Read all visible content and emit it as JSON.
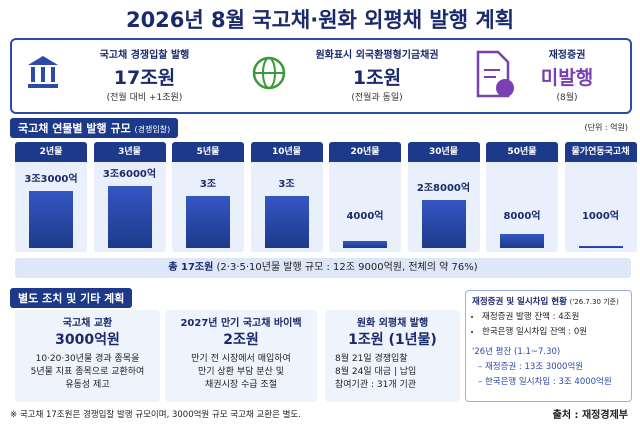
{
  "header": {
    "title": "2026년 8월 국고채·원화 외평채 발행 계획"
  },
  "summary": [
    {
      "label": "국고채 경쟁입찰 발행",
      "amount": "17조원",
      "note": "(전월 대비 +1조원)"
    },
    {
      "label": "원화표시 외국환평형기금채권",
      "amount": "1조원",
      "note": "(전월과 동일)"
    },
    {
      "label": "재정증권",
      "amount": "미발행",
      "note": "(8월)"
    }
  ],
  "issuance": {
    "title": "국고채 연물별 발행 규모",
    "subtitle": "(경쟁입찰)",
    "unit": "(단위 : 억원)",
    "items": [
      {
        "label": "2년물",
        "value": 33000,
        "value_label": "3조3000억"
      },
      {
        "label": "3년물",
        "value": 36000,
        "value_label": "3조6000억"
      },
      {
        "label": "5년물",
        "value": 30000,
        "value_label": "3조"
      },
      {
        "label": "10년물",
        "value": 30000,
        "value_label": "3조"
      },
      {
        "label": "20년물",
        "value": 4000,
        "value_label": "4000억"
      },
      {
        "label": "30년물",
        "value": 28000,
        "value_label": "2조8000억"
      },
      {
        "label": "50년물",
        "value": 8000,
        "value_label": "8000억"
      },
      {
        "label": "물가연동국고채",
        "value": 1000,
        "value_label": "1000억"
      }
    ],
    "total": "총 17조원",
    "total_note": "(2·3·5·10년물 발행 규모 : 12조 9000억원, 전체의 약 76%)"
  },
  "measures": {
    "title": "별도 조치 및 기타 계획",
    "boxes": [
      {
        "title": "국고채 교환",
        "amount": "3000억원",
        "lines": [
          "10·20·30년물 경과 종목을",
          "5년물 지표 종목으로 교환하여",
          "유동성 제고"
        ]
      },
      {
        "title": "2027년 만기 국고채 바이백",
        "amount": "2조원",
        "lines": [
          "만기 전 시장에서 매입하여",
          "만기 상환 부담 분산 및",
          "채권시장 수급 조절"
        ]
      },
      {
        "title": "원화 외평채 발행",
        "amount": "1조원 (1년물)",
        "lines": [
          "8월 21일 경쟁입찰",
          "8월 24일 대금 | 납입",
          "참여기관 : 31개 기관"
        ]
      }
    ],
    "status": {
      "title": "재정증권 및 일시차입 현황",
      "date": "('26.7.30 기준)",
      "balances": [
        "재정증권 발행 잔액 : 4조원",
        "한국은행 일시차입 잔액 : 0원"
      ],
      "avg_title": "'26년 평잔 (1.1~7.30)",
      "avg_lines": [
        "– 재정증권 : 13조 3000억원",
        "– 한국은행 일시차입 : 3조 4000억원"
      ]
    }
  },
  "footer": {
    "note": "※ 국고채 17조원은 경쟁입찰 발행 규모이며, 3000억원 규모 국고채 교환은 별도.",
    "source": "출처 : 재정경제부"
  }
}
